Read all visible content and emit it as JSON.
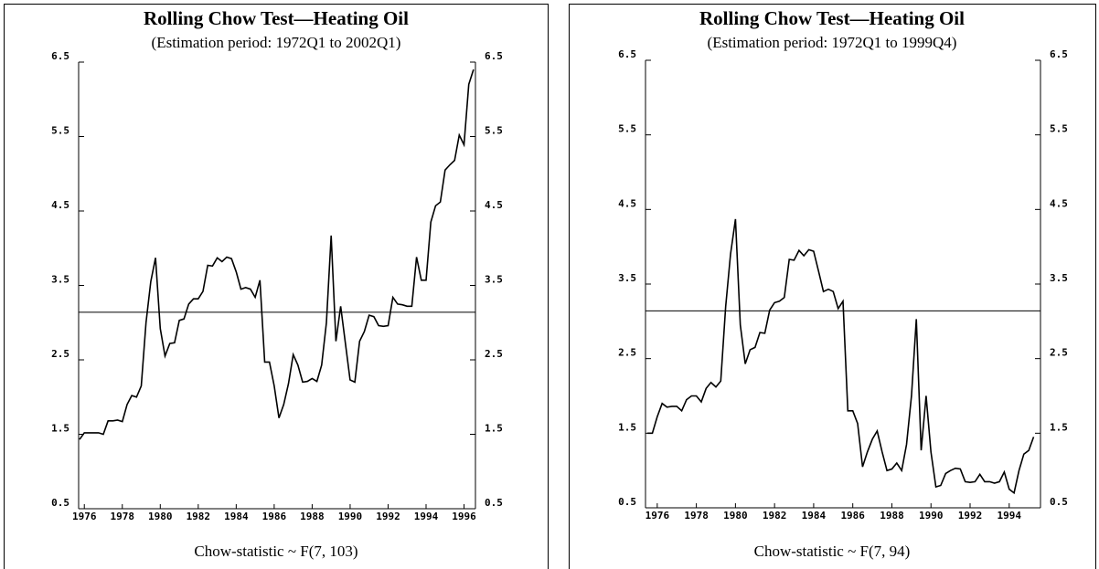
{
  "chart_data": [
    {
      "type": "line",
      "title": "Rolling Chow Test—Heating Oil",
      "subtitle": "(Estimation period: 1972Q1 to 2002Q1)",
      "xlabel": "Chow-statistic ~ F(7, 103)",
      "xlim": [
        1975.7,
        1996.6
      ],
      "xticks": [
        1976,
        1978,
        1980,
        1982,
        1984,
        1986,
        1988,
        1990,
        1992,
        1994,
        1996
      ],
      "ylim": [
        0.5,
        6.5
      ],
      "yticks": [
        0.5,
        1.5,
        2.5,
        3.5,
        4.5,
        5.5,
        6.5
      ],
      "reference_line": 3.14,
      "color": "#000000",
      "x": [
        1975.75,
        1976,
        1976.25,
        1976.5,
        1976.75,
        1977,
        1977.25,
        1977.5,
        1977.75,
        1978,
        1978.25,
        1978.5,
        1978.75,
        1979,
        1979.25,
        1979.5,
        1979.75,
        1980,
        1980.25,
        1980.5,
        1980.75,
        1981,
        1981.25,
        1981.5,
        1981.75,
        1982,
        1982.25,
        1982.5,
        1982.75,
        1983,
        1983.25,
        1983.5,
        1983.75,
        1984,
        1984.25,
        1984.5,
        1984.75,
        1985,
        1985.25,
        1985.5,
        1985.75,
        1986,
        1986.25,
        1986.5,
        1986.75,
        1987,
        1987.25,
        1987.5,
        1987.75,
        1988,
        1988.25,
        1988.5,
        1988.75,
        1989,
        1989.25,
        1989.5,
        1989.75,
        1990,
        1990.25,
        1990.5,
        1990.75,
        1991,
        1991.25,
        1991.5,
        1991.75,
        1992,
        1992.25,
        1992.5,
        1992.75,
        1993,
        1993.25,
        1993.5,
        1993.75,
        1994,
        1994.25,
        1994.5,
        1994.75,
        1995,
        1995.25,
        1995.5,
        1995.75,
        1996,
        1996.25,
        1996.5
      ],
      "values": [
        1.43,
        1.52,
        1.52,
        1.52,
        1.52,
        1.5,
        1.68,
        1.68,
        1.69,
        1.67,
        1.9,
        2.02,
        2.0,
        2.15,
        3.0,
        3.55,
        3.87,
        2.92,
        2.55,
        2.72,
        2.73,
        3.03,
        3.05,
        3.25,
        3.32,
        3.32,
        3.42,
        3.77,
        3.76,
        3.87,
        3.82,
        3.88,
        3.86,
        3.68,
        3.45,
        3.47,
        3.45,
        3.34,
        3.57,
        2.47,
        2.47,
        2.15,
        1.72,
        1.9,
        2.18,
        2.57,
        2.43,
        2.2,
        2.21,
        2.25,
        2.21,
        2.43,
        3.0,
        4.17,
        2.75,
        3.22,
        2.72,
        2.23,
        2.2,
        2.75,
        2.88,
        3.1,
        3.08,
        2.96,
        2.95,
        2.96,
        3.34,
        3.25,
        3.24,
        3.22,
        3.22,
        3.88,
        3.57,
        3.57,
        4.35,
        4.57,
        4.62,
        5.05,
        5.12,
        5.18,
        5.52,
        5.39,
        6.2,
        6.4
      ]
    },
    {
      "type": "line",
      "title": "Rolling Chow Test—Heating Oil",
      "subtitle": "(Estimation period: 1972Q1 to 1999Q4)",
      "xlabel": "Chow-statistic ~ F(7, 94)",
      "xlim": [
        1975.4,
        1995.6
      ],
      "xticks": [
        1976,
        1978,
        1980,
        1982,
        1984,
        1986,
        1988,
        1990,
        1992,
        1994
      ],
      "ylim": [
        0.5,
        6.5
      ],
      "yticks": [
        0.5,
        1.5,
        2.5,
        3.5,
        4.5,
        5.5,
        6.5
      ],
      "reference_line": 3.14,
      "color": "#000000",
      "x": [
        1975.5,
        1975.75,
        1976,
        1976.25,
        1976.5,
        1976.75,
        1977,
        1977.25,
        1977.5,
        1977.75,
        1978,
        1978.25,
        1978.5,
        1978.75,
        1979,
        1979.25,
        1979.5,
        1979.75,
        1980,
        1980.25,
        1980.5,
        1980.75,
        1981,
        1981.25,
        1981.5,
        1981.75,
        1982,
        1982.25,
        1982.5,
        1982.75,
        1983,
        1983.25,
        1983.5,
        1983.75,
        1984,
        1984.25,
        1984.5,
        1984.75,
        1985,
        1985.25,
        1985.5,
        1985.75,
        1986,
        1986.25,
        1986.5,
        1986.75,
        1987,
        1987.25,
        1987.5,
        1987.75,
        1988,
        1988.25,
        1988.5,
        1988.75,
        1989,
        1989.25,
        1989.5,
        1989.75,
        1990,
        1990.25,
        1990.5,
        1990.75,
        1991,
        1991.25,
        1991.5,
        1991.75,
        1992,
        1992.25,
        1992.5,
        1992.75,
        1993,
        1993.25,
        1993.5,
        1993.75,
        1994,
        1994.25,
        1994.5,
        1994.75,
        1995,
        1995.25
      ],
      "values": [
        1.5,
        1.5,
        1.72,
        1.9,
        1.85,
        1.86,
        1.86,
        1.8,
        1.95,
        2.0,
        2.0,
        1.92,
        2.1,
        2.18,
        2.12,
        2.2,
        3.2,
        3.9,
        4.37,
        2.95,
        2.43,
        2.62,
        2.65,
        2.85,
        2.84,
        3.15,
        3.25,
        3.27,
        3.32,
        3.83,
        3.82,
        3.95,
        3.88,
        3.96,
        3.94,
        3.67,
        3.4,
        3.43,
        3.4,
        3.17,
        3.27,
        1.8,
        1.8,
        1.63,
        1.05,
        1.25,
        1.42,
        1.53,
        1.25,
        1.0,
        1.02,
        1.1,
        1.0,
        1.35,
        2.0,
        3.03,
        1.27,
        2.0,
        1.25,
        0.78,
        0.8,
        0.96,
        1.0,
        1.03,
        1.02,
        0.85,
        0.84,
        0.85,
        0.95,
        0.85,
        0.85,
        0.83,
        0.85,
        0.98,
        0.75,
        0.7,
        1.0,
        1.22,
        1.27,
        1.45
      ]
    }
  ]
}
